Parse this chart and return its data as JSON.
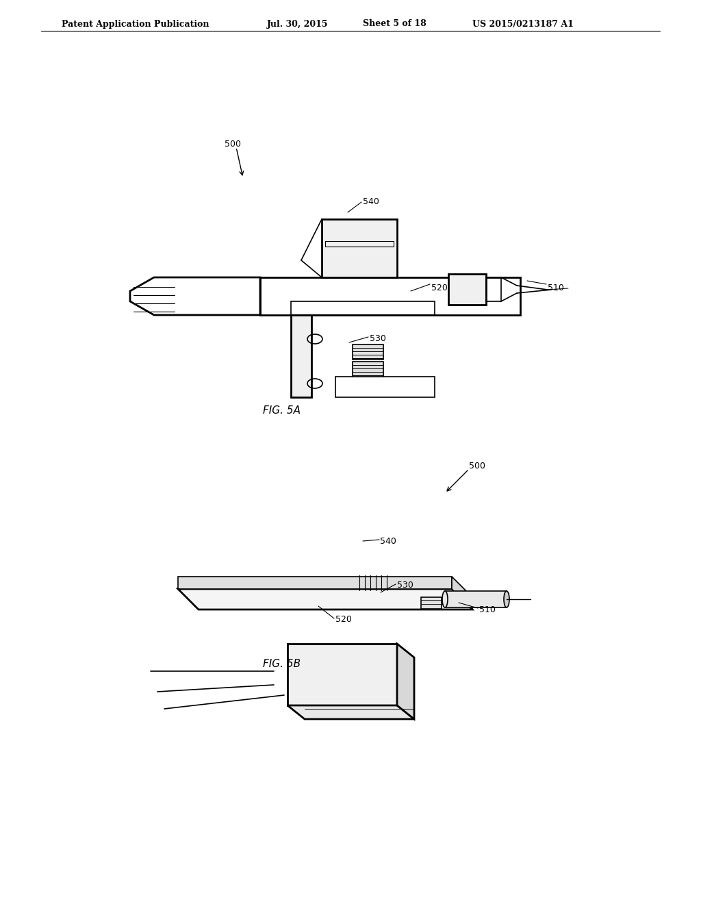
{
  "bg_color": "#ffffff",
  "header_text": "Patent Application Publication",
  "header_date": "Jul. 30, 2015",
  "header_sheet": "Sheet 5 of 18",
  "header_patent": "US 2015/0213187 A1",
  "fig5a_label": "FIG. 5A",
  "fig5b_label": "FIG. 5B",
  "label_500": "500",
  "label_510": "510",
  "label_520": "520",
  "label_530": "530",
  "label_540": "540",
  "line_color": "#000000",
  "line_width": 1.2,
  "thick_line": 2.0
}
